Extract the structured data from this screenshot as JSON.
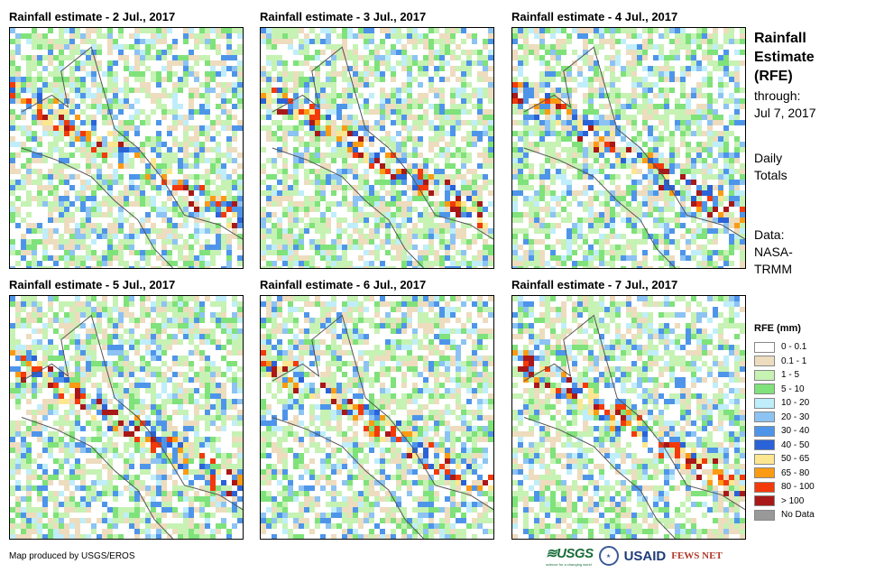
{
  "panels": [
    {
      "title": "Rainfall estimate - 2 Jul., 2017",
      "seed": 11
    },
    {
      "title": "Rainfall estimate - 3 Jul., 2017",
      "seed": 23
    },
    {
      "title": "Rainfall estimate - 4 Jul., 2017",
      "seed": 37
    },
    {
      "title": "Rainfall estimate - 5 Jul., 2017",
      "seed": 41
    },
    {
      "title": "Rainfall estimate - 6 Jul., 2017",
      "seed": 53
    },
    {
      "title": "Rainfall estimate - 7 Jul., 2017",
      "seed": 67
    }
  ],
  "sidebar": {
    "title_line1": "Rainfall",
    "title_line2": "Estimate",
    "title_line3": "(RFE)",
    "through_label": "through:",
    "through_date": "Jul 7, 2017",
    "daily_line1": "Daily",
    "daily_line2": "Totals",
    "data_line1": "Data:",
    "data_line2": "NASA-",
    "data_line3": "TRMM"
  },
  "legend": {
    "title": "RFE (mm)",
    "items": [
      {
        "label": "0 - 0.1",
        "color": "#ffffff"
      },
      {
        "label": "0.1 - 1",
        "color": "#eddcbe"
      },
      {
        "label": "1 - 5",
        "color": "#c6f2b4"
      },
      {
        "label": "5 - 10",
        "color": "#7fe27a"
      },
      {
        "label": "10 - 20",
        "color": "#bfeefa"
      },
      {
        "label": "20 - 30",
        "color": "#8cc3f2"
      },
      {
        "label": "30 - 40",
        "color": "#4e95ea"
      },
      {
        "label": "40 - 50",
        "color": "#2a63d8"
      },
      {
        "label": "50 - 65",
        "color": "#fde690"
      },
      {
        "label": "65 - 80",
        "color": "#fb9b14"
      },
      {
        "label": "80 - 100",
        "color": "#f23a0a"
      },
      {
        "label": "> 100",
        "color": "#a81818"
      },
      {
        "label": "No Data",
        "color": "#999999"
      }
    ]
  },
  "credit": "Map produced by USGS/EROS",
  "logos": {
    "usgs": "≋USGS",
    "usgs_tagline": "science for a changing world",
    "usaid": "USAID",
    "fews": "FEWS NET"
  }
}
